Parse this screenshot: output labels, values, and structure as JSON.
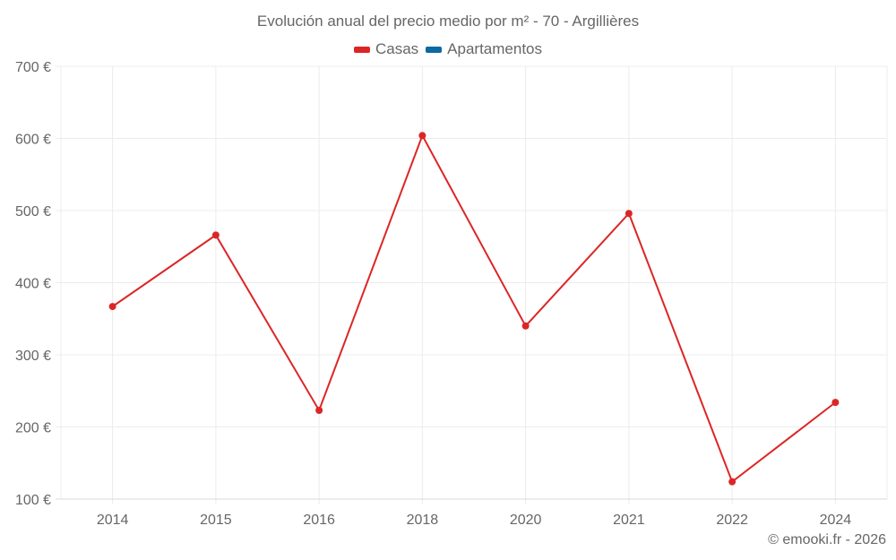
{
  "chart_data": {
    "type": "line",
    "title": "Evolución anual del precio medio por m² - 70 - Argillières",
    "categories": [
      "2014",
      "2015",
      "2016",
      "2018",
      "2020",
      "2021",
      "2022",
      "2024"
    ],
    "series": [
      {
        "name": "Casas",
        "color": "#dc2626",
        "values": [
          367,
          466,
          223,
          604,
          340,
          496,
          124,
          234
        ]
      },
      {
        "name": "Apartamentos",
        "color": "#0b6aa2",
        "values": []
      }
    ],
    "xlabel": "",
    "ylabel": "",
    "ylim": [
      100,
      700
    ],
    "yticks": [
      "100 €",
      "200 €",
      "300 €",
      "400 €",
      "500 €",
      "600 €",
      "700 €"
    ],
    "grid": true,
    "legend_position": "top"
  },
  "legend": {
    "casas": "Casas",
    "apartamentos": "Apartamentos"
  },
  "credit": "© emooki.fr - 2026"
}
